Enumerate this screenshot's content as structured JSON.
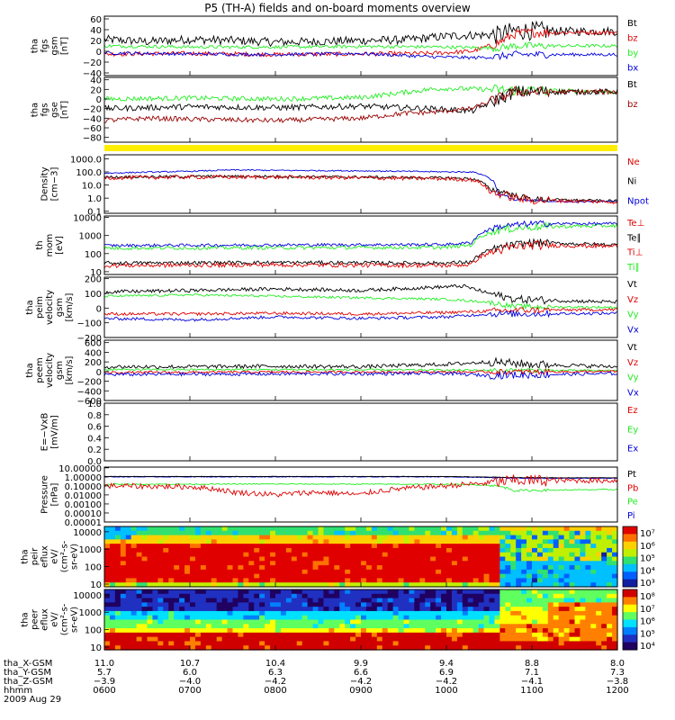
{
  "title": "P5 (TH-A) fields and on-board moments overview",
  "colors": {
    "black": "#000000",
    "red": "#e00000",
    "green": "#22ee22",
    "blue": "#0000dd",
    "darkred": "#990000",
    "yellow": "#ffee00"
  },
  "chart_data": [
    {
      "type": "line",
      "ylabel": [
        "tha",
        "fgs",
        "gsm",
        "[nT]"
      ],
      "yticks": [
        "60",
        "40",
        "20",
        "0",
        "−20",
        "−40"
      ],
      "ylim": [
        -45,
        65
      ],
      "legend": [
        {
          "name": "Bt",
          "color": "black"
        },
        {
          "name": "bz",
          "color": "red"
        },
        {
          "name": "by",
          "color": "green"
        },
        {
          "name": "bx",
          "color": "blue"
        }
      ],
      "series": [
        {
          "name": "Bt",
          "color": "black",
          "x": [
            6.0,
            6.5,
            7.0,
            7.5,
            8.0,
            8.5,
            9.0,
            9.5,
            9.8,
            10.0,
            10.3,
            10.6,
            10.8,
            11.0,
            11.5,
            12.0
          ],
          "y": [
            22,
            18,
            22,
            20,
            17,
            18,
            20,
            21,
            25,
            28,
            30,
            30,
            38,
            38,
            37,
            37
          ],
          "noise": 8
        },
        {
          "name": "bz",
          "color": "red",
          "x": [
            6.0,
            7.0,
            8.0,
            9.0,
            9.8,
            10.3,
            10.6,
            10.8,
            11.0,
            12.0
          ],
          "y": [
            -5,
            -4,
            -6,
            -5,
            -4,
            0,
            15,
            32,
            35,
            35
          ],
          "noise": 4
        },
        {
          "name": "by",
          "color": "green",
          "x": [
            6.0,
            7.0,
            8.0,
            9.0,
            10.0,
            10.6,
            10.8,
            12.0
          ],
          "y": [
            10,
            8,
            8,
            9,
            8,
            6,
            10,
            10
          ],
          "noise": 3
        },
        {
          "name": "bx",
          "color": "blue",
          "x": [
            6.0,
            7.0,
            8.0,
            9.0,
            9.8,
            10.3,
            10.6,
            10.8,
            12.0
          ],
          "y": [
            -3,
            -5,
            -6,
            -4,
            -10,
            -12,
            -10,
            -6,
            -6
          ],
          "noise": 3
        }
      ]
    },
    {
      "type": "line",
      "ylabel": [
        "tha",
        "fgs",
        "gse",
        "[nT]"
      ],
      "yticks": [
        "40",
        "20",
        "0",
        "−20",
        "−40",
        "−60",
        "−80"
      ],
      "ylim": [
        -90,
        45
      ],
      "legend": [
        {
          "name": "Bt",
          "color": "black"
        },
        {
          "name": "bz",
          "color": "darkred"
        }
      ],
      "series": [
        {
          "name": "green",
          "color": "green",
          "x": [
            6.0,
            7.0,
            8.0,
            9.0,
            9.8,
            10.0,
            10.5,
            10.8,
            12.0
          ],
          "y": [
            0,
            2,
            0,
            3,
            20,
            22,
            20,
            18,
            15
          ],
          "noise": 5
        },
        {
          "name": "Bt",
          "color": "black",
          "x": [
            6.0,
            6.5,
            7.0,
            8.0,
            9.0,
            9.8,
            10.3,
            10.8,
            12.0
          ],
          "y": [
            -20,
            -18,
            -16,
            -18,
            -15,
            -20,
            -25,
            15,
            15
          ],
          "noise": 6
        },
        {
          "name": "bz",
          "color": "darkred",
          "x": [
            6.0,
            6.5,
            7.0,
            8.0,
            9.0,
            9.5,
            9.8,
            10.3,
            10.8,
            12.0
          ],
          "y": [
            -45,
            -40,
            -42,
            -45,
            -40,
            -30,
            -28,
            -20,
            15,
            15
          ],
          "noise": 5
        }
      ]
    },
    {
      "type": "log-line",
      "ylabel": [
        "Density",
        "[cm−3]"
      ],
      "yticks": [
        "1000.0",
        "100.0",
        "10.0",
        "1.0",
        "0.1"
      ],
      "ylim": [
        0.07,
        2000
      ],
      "legend": [
        {
          "name": "Ne",
          "color": "red"
        },
        {
          "name": "Ni",
          "color": "black"
        },
        {
          "name": "Npot",
          "color": "blue"
        }
      ],
      "series": [
        {
          "name": "Npot",
          "color": "blue",
          "x": [
            6.0,
            7.0,
            7.5,
            8.0,
            9.0,
            10.0,
            10.3,
            10.6,
            10.8,
            11.5,
            12.0
          ],
          "y": [
            80,
            110,
            140,
            130,
            120,
            100,
            100,
            2,
            0.7,
            0.5,
            0.6
          ],
          "noise": 0.05
        },
        {
          "name": "Ni",
          "color": "black",
          "x": [
            6.0,
            7.0,
            8.0,
            9.0,
            10.0,
            10.3,
            10.5,
            10.8,
            11.0,
            12.0
          ],
          "y": [
            40,
            45,
            45,
            40,
            35,
            30,
            5,
            1.5,
            0.8,
            0.6
          ],
          "noise": 0.1
        },
        {
          "name": "Ne",
          "color": "red",
          "x": [
            6.0,
            7.0,
            8.0,
            9.0,
            10.0,
            10.3,
            10.5,
            10.8,
            11.0,
            12.0
          ],
          "y": [
            35,
            40,
            40,
            35,
            30,
            25,
            3,
            1,
            0.7,
            0.5
          ],
          "noise": 0.15
        }
      ]
    },
    {
      "type": "log-line",
      "ylabel": [
        "th",
        "mom",
        "[eV]"
      ],
      "yticks": [
        "10000",
        "1000",
        "100",
        "10"
      ],
      "ylim": [
        7,
        12000
      ],
      "legend": [
        {
          "name": "Te⊥",
          "color": "red"
        },
        {
          "name": "Te∥",
          "color": "black"
        },
        {
          "name": "Ti⊥",
          "color": "red"
        },
        {
          "name": "Ti∥",
          "color": "green"
        }
      ],
      "series": [
        {
          "name": "Ti∥",
          "color": "green",
          "x": [
            6.0,
            8.0,
            10.0,
            10.3,
            10.6,
            11.0,
            12.0
          ],
          "y": [
            200,
            210,
            220,
            300,
            2000,
            3000,
            3500
          ],
          "noise": 0.1
        },
        {
          "name": "Ti⊥",
          "color": "blue",
          "x": [
            6.0,
            8.0,
            10.0,
            10.3,
            10.6,
            11.0,
            12.0
          ],
          "y": [
            280,
            300,
            320,
            400,
            3000,
            4500,
            4500
          ],
          "noise": 0.08
        },
        {
          "name": "Te∥",
          "color": "black",
          "x": [
            6.0,
            8.0,
            10.0,
            10.3,
            10.6,
            11.0,
            12.0
          ],
          "y": [
            30,
            32,
            30,
            35,
            200,
            400,
            300
          ],
          "noise": 0.1
        },
        {
          "name": "Te⊥",
          "color": "red",
          "x": [
            6.0,
            8.0,
            10.0,
            10.3,
            10.6,
            11.0,
            12.0
          ],
          "y": [
            22,
            24,
            22,
            25,
            150,
            300,
            250
          ],
          "noise": 0.12
        }
      ]
    },
    {
      "type": "line",
      "ylabel": [
        "tha",
        "peim",
        "velocity",
        "gsm",
        "[km/s]"
      ],
      "yticks": [
        "200",
        "100",
        "0",
        "−100",
        "−200"
      ],
      "ylim": [
        -200,
        210
      ],
      "legend": [
        {
          "name": "Vt",
          "color": "black"
        },
        {
          "name": "Vz",
          "color": "red"
        },
        {
          "name": "Vy",
          "color": "green"
        },
        {
          "name": "Vx",
          "color": "blue"
        }
      ],
      "series": [
        {
          "name": "Vt",
          "color": "black",
          "x": [
            6.0,
            7.0,
            8.0,
            9.0,
            9.8,
            10.2,
            10.5,
            10.8,
            12.0
          ],
          "y": [
            110,
            120,
            130,
            120,
            140,
            150,
            100,
            60,
            40
          ],
          "noise": 12
        },
        {
          "name": "Vy",
          "color": "green",
          "x": [
            6.0,
            7.0,
            8.0,
            9.0,
            10.0,
            10.5,
            10.8,
            12.0
          ],
          "y": [
            80,
            90,
            80,
            70,
            60,
            40,
            10,
            5
          ],
          "noise": 8
        },
        {
          "name": "Vz",
          "color": "red",
          "x": [
            6.0,
            7.0,
            8.0,
            9.0,
            10.0,
            10.5,
            10.8,
            12.0
          ],
          "y": [
            -40,
            -40,
            -35,
            -40,
            -30,
            -20,
            -15,
            -10
          ],
          "noise": 10
        },
        {
          "name": "Vx",
          "color": "blue",
          "x": [
            6.0,
            7.0,
            8.0,
            9.0,
            10.0,
            10.5,
            10.8,
            12.0
          ],
          "y": [
            -70,
            -80,
            -60,
            -70,
            -60,
            -40,
            -40,
            -35
          ],
          "noise": 10
        }
      ]
    },
    {
      "type": "line",
      "ylabel": [
        "tha",
        "peem",
        "velocity",
        "gsm",
        "[km/s]"
      ],
      "yticks": [
        "600",
        "400",
        "200",
        "0",
        "−200",
        "−400",
        "−600"
      ],
      "ylim": [
        -600,
        650
      ],
      "legend": [
        {
          "name": "Vt",
          "color": "black"
        },
        {
          "name": "Vz",
          "color": "red"
        },
        {
          "name": "Vy",
          "color": "green"
        },
        {
          "name": "Vx",
          "color": "blue"
        }
      ],
      "series": [
        {
          "name": "Vt",
          "color": "black",
          "x": [
            6.0,
            7.0,
            8.0,
            9.0,
            10.0,
            10.5,
            11.0,
            12.0
          ],
          "y": [
            100,
            100,
            110,
            100,
            150,
            200,
            150,
            100
          ],
          "noise": 40
        },
        {
          "name": "Vy",
          "color": "green",
          "x": [
            6.0,
            8.0,
            10.0,
            12.0
          ],
          "y": [
            40,
            40,
            30,
            20
          ],
          "noise": 20
        },
        {
          "name": "Vz",
          "color": "red",
          "x": [
            6.0,
            8.0,
            10.0,
            12.0
          ],
          "y": [
            -20,
            -10,
            -10,
            0
          ],
          "noise": 25
        },
        {
          "name": "Vx",
          "color": "blue",
          "x": [
            6.0,
            8.0,
            10.0,
            10.5,
            12.0
          ],
          "y": [
            -60,
            -50,
            -40,
            -80,
            -40
          ],
          "noise": 35
        }
      ]
    },
    {
      "type": "line",
      "ylabel": [
        "E=−VxB",
        "[mV/m]"
      ],
      "yticks": [
        "1.0",
        "0.8",
        "0.6",
        "0.4",
        "0.2",
        "0.0"
      ],
      "ylim": [
        0,
        1.0
      ],
      "legend": [
        {
          "name": "Ez",
          "color": "red"
        },
        {
          "name": "Ey",
          "color": "green"
        },
        {
          "name": "Ex",
          "color": "blue"
        }
      ],
      "series": []
    },
    {
      "type": "log-line",
      "ylabel": [
        "Pressure",
        "[nPa]"
      ],
      "yticks": [
        "10.00000",
        "1.00000",
        "0.10000",
        "0.01000",
        "0.00100",
        "0.00010",
        "0.00001"
      ],
      "ylim": [
        1e-05,
        12
      ],
      "legend": [
        {
          "name": "Pt",
          "color": "black"
        },
        {
          "name": "Pb",
          "color": "red"
        },
        {
          "name": "Pe",
          "color": "green"
        },
        {
          "name": "Pi",
          "color": "blue"
        }
      ],
      "series": [
        {
          "name": "Pi",
          "color": "blue",
          "x": [
            6.0,
            8.0,
            10.0,
            10.6,
            11.0,
            12.0
          ],
          "y": [
            1.0,
            1.0,
            1.0,
            0.8,
            0.7,
            0.7
          ],
          "noise": 0.03
        },
        {
          "name": "Pt",
          "color": "black",
          "x": [
            6.0,
            8.0,
            10.0,
            10.6,
            11.0,
            12.0
          ],
          "y": [
            1.1,
            1.1,
            1.1,
            0.9,
            0.8,
            0.8
          ],
          "noise": 0.02
        },
        {
          "name": "Pe",
          "color": "green",
          "x": [
            6.0,
            8.0,
            10.0,
            10.5,
            10.8,
            12.0
          ],
          "y": [
            0.15,
            0.16,
            0.15,
            0.12,
            0.03,
            0.04
          ],
          "noise": 0.06
        },
        {
          "name": "Pb",
          "color": "red",
          "x": [
            6.0,
            7.0,
            7.5,
            8.0,
            8.5,
            9.0,
            9.5,
            10.0,
            10.5,
            10.8,
            12.0
          ],
          "y": [
            0.1,
            0.08,
            0.02,
            0.01,
            0.02,
            0.01,
            0.05,
            0.1,
            0.2,
            0.4,
            0.4
          ],
          "noise": 0.3
        }
      ]
    },
    {
      "type": "heatmap",
      "ylabel": [
        "tha",
        "peir",
        "eflux",
        "eV/",
        "(cm²-s-",
        "sr-eV)"
      ],
      "yticks": [
        "10000",
        "1000",
        "100",
        "10"
      ],
      "colorbar_ticks": [
        "10⁷",
        "10⁶",
        "10⁵",
        "10⁴",
        "10³"
      ]
    },
    {
      "type": "heatmap",
      "ylabel": [
        "tha",
        "peer",
        "eflux",
        "eV/",
        "(cm²-s-",
        "sr-eV)"
      ],
      "yticks": [
        "10000",
        "1000",
        "100",
        "10"
      ],
      "colorbar_ticks": [
        "10⁸",
        "10⁷",
        "10⁶",
        "10⁵",
        "10⁴"
      ]
    }
  ],
  "xaxis": {
    "rows": [
      {
        "label": "tha_X-GSM",
        "values": [
          "11.0",
          "10.7",
          "10.4",
          "9.9",
          "9.4",
          "8.8",
          "8.0"
        ]
      },
      {
        "label": "tha_Y-GSM",
        "values": [
          "5.7",
          "6.0",
          "6.3",
          "6.6",
          "6.9",
          "7.1",
          "7.3"
        ]
      },
      {
        "label": "tha_Z-GSM",
        "values": [
          "−3.9",
          "−4.0",
          "−4.2",
          "−4.2",
          "−4.2",
          "−4.1",
          "−3.8"
        ]
      },
      {
        "label": "hhmm",
        "values": [
          "0600",
          "0700",
          "0800",
          "0900",
          "1000",
          "1100",
          "1200"
        ]
      }
    ],
    "date": "2009 Aug 29"
  }
}
